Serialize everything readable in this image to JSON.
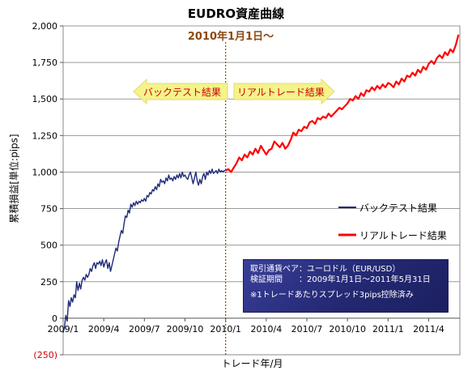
{
  "chart_data": {
    "type": "line",
    "title": "EUDRO資産曲線",
    "xlabel": "トレード年/月",
    "ylabel": "累積損益[単位:pips]",
    "ylim": [
      -250,
      2000
    ],
    "yticks": [
      {
        "value": 2000,
        "label": "2,000"
      },
      {
        "value": 1750,
        "label": "1,750"
      },
      {
        "value": 1500,
        "label": "1,500"
      },
      {
        "value": 1250,
        "label": "1,250"
      },
      {
        "value": 1000,
        "label": "1,000"
      },
      {
        "value": 750,
        "label": "750"
      },
      {
        "value": 500,
        "label": "500"
      },
      {
        "value": 250,
        "label": "250"
      },
      {
        "value": 0,
        "label": "0"
      },
      {
        "value": -250,
        "label": "(250)"
      }
    ],
    "xticks": [
      "2009/1",
      "2009/4",
      "2009/7",
      "2009/10",
      "2010/1",
      "2010/4",
      "2010/7",
      "2010/10",
      "2011/1",
      "2011/4"
    ],
    "grid": "horizontal",
    "legend_position": "right",
    "annotations": {
      "start_date": "2010年1月1日～",
      "backtest_arrow": "バックテスト結果",
      "realtrade_arrow": "リアルトレード結果"
    },
    "info_box": {
      "line1": "取引通貨ペア：ユーロドル（EUR/USD）",
      "line2": "検証期間　　：2009年1月1日～2011年5月31日",
      "line3": "※1トレードあたりスプレッド3pips控除済み"
    },
    "series": [
      {
        "name": "バックテスト結果",
        "color": "#1f2a7a",
        "x": [
          0.0,
          0.1,
          0.2,
          0.3,
          0.4,
          0.5,
          0.6,
          0.7,
          0.8,
          0.9,
          1.0,
          1.1,
          1.2,
          1.3,
          1.4,
          1.5,
          1.6,
          1.7,
          1.8,
          1.9,
          2.0,
          2.1,
          2.2,
          2.3,
          2.4,
          2.5,
          2.6,
          2.7,
          2.8,
          2.9,
          3.0,
          3.1,
          3.2,
          3.3,
          3.4,
          3.5,
          3.6,
          3.7,
          3.8,
          3.9,
          4.0,
          4.1,
          4.2,
          4.3,
          4.4,
          4.5,
          4.6,
          4.7,
          4.8,
          4.9,
          5.0,
          5.1,
          5.2,
          5.3,
          5.4,
          5.5,
          5.6,
          5.7,
          5.8,
          5.9,
          6.0,
          6.1,
          6.2,
          6.3,
          6.4,
          6.5,
          6.6,
          6.7,
          6.8,
          6.9,
          7.0,
          7.1,
          7.2,
          7.3,
          7.4,
          7.5,
          7.6,
          7.7,
          7.8,
          7.9,
          8.0,
          8.1,
          8.2,
          8.3,
          8.4,
          8.5,
          8.6,
          8.7,
          8.8,
          8.9,
          9.0,
          9.1,
          9.2,
          9.3,
          9.4,
          9.5,
          9.6,
          9.7,
          9.8,
          9.9,
          10.0,
          10.1,
          10.2,
          10.3,
          10.4,
          10.5,
          10.6,
          10.7,
          10.8,
          10.9,
          11.0,
          11.1,
          11.2,
          11.3,
          11.4,
          11.5,
          11.6,
          11.7,
          11.8,
          11.9,
          12.0
        ],
        "y": [
          -100,
          -60,
          20,
          -20,
          120,
          80,
          140,
          110,
          160,
          140,
          250,
          190,
          240,
          200,
          260,
          280,
          260,
          300,
          280,
          300,
          340,
          320,
          360,
          380,
          340,
          380,
          370,
          390,
          360,
          400,
          350,
          380,
          400,
          340,
          380,
          320,
          360,
          400,
          440,
          480,
          460,
          520,
          560,
          600,
          580,
          650,
          700,
          690,
          740,
          720,
          780,
          760,
          790,
          770,
          800,
          780,
          800,
          790,
          810,
          800,
          820,
          800,
          840,
          830,
          860,
          850,
          880,
          870,
          900,
          880,
          920,
          900,
          950,
          930,
          940,
          920,
          960,
          940,
          980,
          950,
          960,
          940,
          970,
          950,
          980,
          960,
          990,
          960,
          1000,
          970,
          980,
          960,
          950,
          980,
          1000,
          960,
          920,
          960,
          1000,
          940,
          910,
          950,
          920,
          970,
          990,
          950,
          1000,
          980,
          1010,
          990,
          1020,
          990,
          1000,
          1010,
          990,
          1020,
          1000,
          1010,
          1000,
          1010,
          1010
        ]
      },
      {
        "name": "リアルトレード結果",
        "color": "#ff0000",
        "x": [
          12.0,
          12.2,
          12.4,
          12.6,
          12.8,
          13.0,
          13.2,
          13.4,
          13.6,
          13.8,
          14.0,
          14.2,
          14.4,
          14.6,
          14.8,
          15.0,
          15.2,
          15.4,
          15.6,
          15.8,
          16.0,
          16.2,
          16.4,
          16.6,
          16.8,
          17.0,
          17.2,
          17.4,
          17.6,
          17.8,
          18.0,
          18.2,
          18.4,
          18.6,
          18.8,
          19.0,
          19.2,
          19.4,
          19.6,
          19.8,
          20.0,
          20.2,
          20.4,
          20.6,
          20.8,
          21.0,
          21.2,
          21.4,
          21.6,
          21.8,
          22.0,
          22.2,
          22.4,
          22.6,
          22.8,
          23.0,
          23.2,
          23.4,
          23.6,
          23.8,
          24.0,
          24.2,
          24.4,
          24.6,
          24.8,
          25.0,
          25.2,
          25.4,
          25.6,
          25.8,
          26.0,
          26.2,
          26.4,
          26.6,
          26.8,
          27.0,
          27.2,
          27.4,
          27.6,
          27.8,
          28.0,
          28.2,
          28.4,
          28.6,
          28.8,
          29.0,
          29.2
        ],
        "y": [
          1010,
          1020,
          1000,
          1030,
          1060,
          1100,
          1080,
          1120,
          1100,
          1140,
          1120,
          1160,
          1130,
          1180,
          1150,
          1120,
          1150,
          1160,
          1210,
          1190,
          1170,
          1200,
          1160,
          1180,
          1220,
          1270,
          1250,
          1290,
          1280,
          1310,
          1300,
          1340,
          1350,
          1330,
          1370,
          1360,
          1380,
          1370,
          1400,
          1380,
          1400,
          1420,
          1440,
          1430,
          1450,
          1470,
          1500,
          1490,
          1520,
          1500,
          1540,
          1520,
          1560,
          1550,
          1580,
          1560,
          1590,
          1570,
          1600,
          1580,
          1610,
          1600,
          1580,
          1620,
          1600,
          1640,
          1620,
          1660,
          1650,
          1680,
          1660,
          1700,
          1680,
          1720,
          1700,
          1740,
          1760,
          1740,
          1780,
          1800,
          1780,
          1820,
          1800,
          1840,
          1820,
          1870,
          1940
        ]
      }
    ]
  }
}
